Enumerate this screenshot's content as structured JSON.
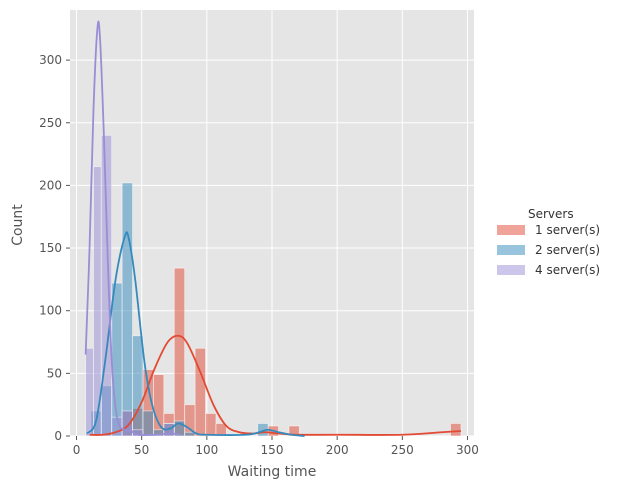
{
  "chart_data": {
    "type": "histogram",
    "xlabel": "Waiting time",
    "ylabel": "Count",
    "xlim": [
      -5,
      305
    ],
    "ylim": [
      0,
      340
    ],
    "xticks": [
      0,
      50,
      100,
      150,
      200,
      250,
      300
    ],
    "yticks": [
      0,
      50,
      100,
      150,
      200,
      250,
      300
    ],
    "grid": true,
    "legend": {
      "title": "Servers",
      "placement": "right"
    },
    "series": [
      {
        "name": "1 server(s)",
        "color": "#E24A33",
        "bins": [
          {
            "x0": 35,
            "x1": 43,
            "count": 20
          },
          {
            "x0": 43,
            "x1": 51,
            "count": 22
          },
          {
            "x0": 51,
            "x1": 59,
            "count": 53
          },
          {
            "x0": 59,
            "x1": 67,
            "count": 49
          },
          {
            "x0": 67,
            "x1": 75,
            "count": 18
          },
          {
            "x0": 75,
            "x1": 83,
            "count": 134
          },
          {
            "x0": 83,
            "x1": 91,
            "count": 25
          },
          {
            "x0": 91,
            "x1": 99,
            "count": 70
          },
          {
            "x0": 99,
            "x1": 107,
            "count": 18
          },
          {
            "x0": 107,
            "x1": 115,
            "count": 10
          },
          {
            "x0": 147,
            "x1": 155,
            "count": 8
          },
          {
            "x0": 163,
            "x1": 171,
            "count": 8
          },
          {
            "x0": 287,
            "x1": 295,
            "count": 10
          }
        ],
        "kde": [
          [
            10,
            1
          ],
          [
            20,
            1
          ],
          [
            30,
            3
          ],
          [
            40,
            9
          ],
          [
            50,
            27
          ],
          [
            60,
            54
          ],
          [
            70,
            75
          ],
          [
            78,
            80
          ],
          [
            85,
            74
          ],
          [
            95,
            51
          ],
          [
            105,
            25
          ],
          [
            115,
            8
          ],
          [
            125,
            3
          ],
          [
            135,
            2
          ],
          [
            145,
            3
          ],
          [
            155,
            2
          ],
          [
            170,
            1
          ],
          [
            200,
            1
          ],
          [
            250,
            1
          ],
          [
            280,
            3
          ],
          [
            295,
            4
          ]
        ]
      },
      {
        "name": "2 server(s)",
        "color": "#348ABD",
        "bins": [
          {
            "x0": 11,
            "x1": 19,
            "count": 20
          },
          {
            "x0": 19,
            "x1": 27,
            "count": 40
          },
          {
            "x0": 27,
            "x1": 35,
            "count": 122
          },
          {
            "x0": 35,
            "x1": 43,
            "count": 202
          },
          {
            "x0": 43,
            "x1": 51,
            "count": 80
          },
          {
            "x0": 51,
            "x1": 59,
            "count": 20
          },
          {
            "x0": 59,
            "x1": 67,
            "count": 5
          },
          {
            "x0": 67,
            "x1": 75,
            "count": 10
          },
          {
            "x0": 75,
            "x1": 83,
            "count": 12
          },
          {
            "x0": 83,
            "x1": 91,
            "count": 3
          },
          {
            "x0": 139,
            "x1": 147,
            "count": 10
          }
        ],
        "kde": [
          [
            8,
            2
          ],
          [
            15,
            12
          ],
          [
            22,
            60
          ],
          [
            30,
            125
          ],
          [
            37,
            159
          ],
          [
            40,
            158
          ],
          [
            45,
            125
          ],
          [
            52,
            60
          ],
          [
            58,
            25
          ],
          [
            65,
            7
          ],
          [
            72,
            6
          ],
          [
            78,
            10
          ],
          [
            85,
            7
          ],
          [
            92,
            2
          ],
          [
            100,
            1
          ],
          [
            130,
            1
          ],
          [
            140,
            3
          ],
          [
            147,
            5
          ],
          [
            155,
            3
          ],
          [
            165,
            1
          ],
          [
            175,
            0
          ]
        ]
      },
      {
        "name": "4 server(s)",
        "color": "#988ED5",
        "bins": [
          {
            "x0": 7,
            "x1": 13,
            "count": 70
          },
          {
            "x0": 13,
            "x1": 19,
            "count": 215
          },
          {
            "x0": 19,
            "x1": 27,
            "count": 240
          },
          {
            "x0": 27,
            "x1": 35,
            "count": 15
          },
          {
            "x0": 35,
            "x1": 43,
            "count": 20
          },
          {
            "x0": 43,
            "x1": 51,
            "count": 5
          },
          {
            "x0": 67,
            "x1": 75,
            "count": 10
          }
        ],
        "kde": [
          [
            7,
            65
          ],
          [
            10,
            150
          ],
          [
            13,
            260
          ],
          [
            16,
            325
          ],
          [
            18,
            318
          ],
          [
            21,
            240
          ],
          [
            24,
            140
          ],
          [
            27,
            60
          ],
          [
            30,
            22
          ],
          [
            33,
            8
          ],
          [
            37,
            5
          ],
          [
            42,
            4
          ],
          [
            47,
            1
          ],
          [
            60,
            1
          ],
          [
            72,
            2
          ],
          [
            80,
            1
          ]
        ]
      }
    ]
  }
}
